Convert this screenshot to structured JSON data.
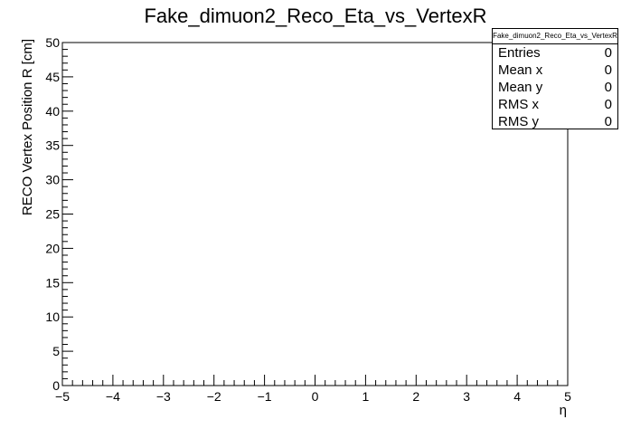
{
  "chart_data": {
    "type": "heatmap",
    "title": "Fake_dimuon2_Reco_Eta_vs_VertexR",
    "xlabel": "η",
    "ylabel": "RECO Vertex Position R [cm]",
    "xlim": [
      -5,
      5
    ],
    "ylim": [
      0,
      50
    ],
    "x_ticks": [
      "−5",
      "−4",
      "−3",
      "−2",
      "−1",
      "0",
      "1",
      "2",
      "3",
      "4",
      "5"
    ],
    "y_ticks": [
      "0",
      "5",
      "10",
      "15",
      "20",
      "25",
      "30",
      "35",
      "40",
      "45",
      "50"
    ],
    "values": [],
    "grid": false,
    "stats_box": {
      "title": "Fake_dimuon2_Reco_Eta_vs_VertexR",
      "rows": [
        {
          "label": "Entries",
          "value": "0"
        },
        {
          "label": "Mean x",
          "value": "0"
        },
        {
          "label": "Mean y",
          "value": "0"
        },
        {
          "label": "RMS x",
          "value": "0"
        },
        {
          "label": "RMS y",
          "value": "0"
        }
      ]
    }
  }
}
